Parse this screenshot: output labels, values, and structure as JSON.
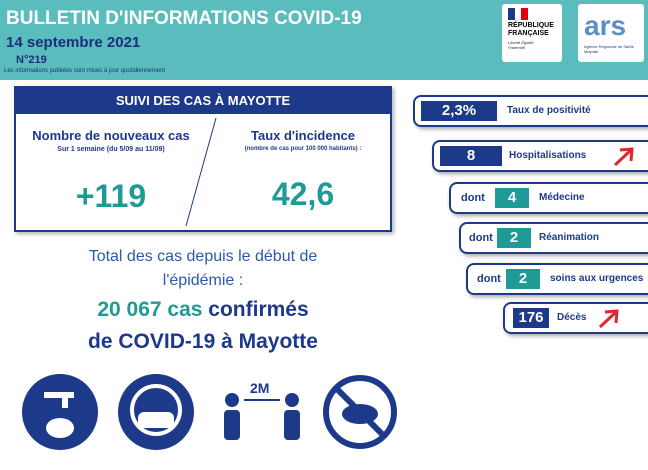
{
  "header": {
    "title": "BULLETIN D'INFORMATIONS COVID-19",
    "date": "14 septembre 2021",
    "number": "N°219",
    "note": "Les informations publiées sont mises à jour quotidiennement"
  },
  "logos": {
    "republique": "RÉPUBLIQUE FRANÇAISE",
    "motto": "Liberté Égalité Fraternité",
    "ars": "ars",
    "ars_sub": "Agence Régionale de Santé Mayotte"
  },
  "panel": {
    "title": "SUIVI DES CAS À MAYOTTE",
    "left": {
      "label": "Nombre de nouveaux cas",
      "sub": "Sur 1 semaine (du 5/09 au 11/09)",
      "value": "+119"
    },
    "right": {
      "label": "Taux d'incidence",
      "sub": "(nombre de cas pour 100 000 habitants) :",
      "value": "42,6"
    }
  },
  "total": {
    "line1": "Total des cas depuis le début de",
    "line2": "l'épidémie :",
    "line3a": "20 067 cas",
    "line3b": " confirmés",
    "line4": "de COVID-19 à Mayotte"
  },
  "indicators": [
    {
      "value": "2,3%",
      "label": "Taux de positivité"
    },
    {
      "value": "8",
      "label": "Hospitalisations"
    },
    {
      "prefix": "dont",
      "value": "4",
      "label": "Médecine"
    },
    {
      "prefix": "dont",
      "value": "2",
      "label": "Réanimation"
    },
    {
      "prefix": "dont",
      "value": "2",
      "label": "soins aux urgences"
    },
    {
      "value": "176",
      "label": "Décès"
    }
  ],
  "icons": {
    "distance": "2M"
  }
}
